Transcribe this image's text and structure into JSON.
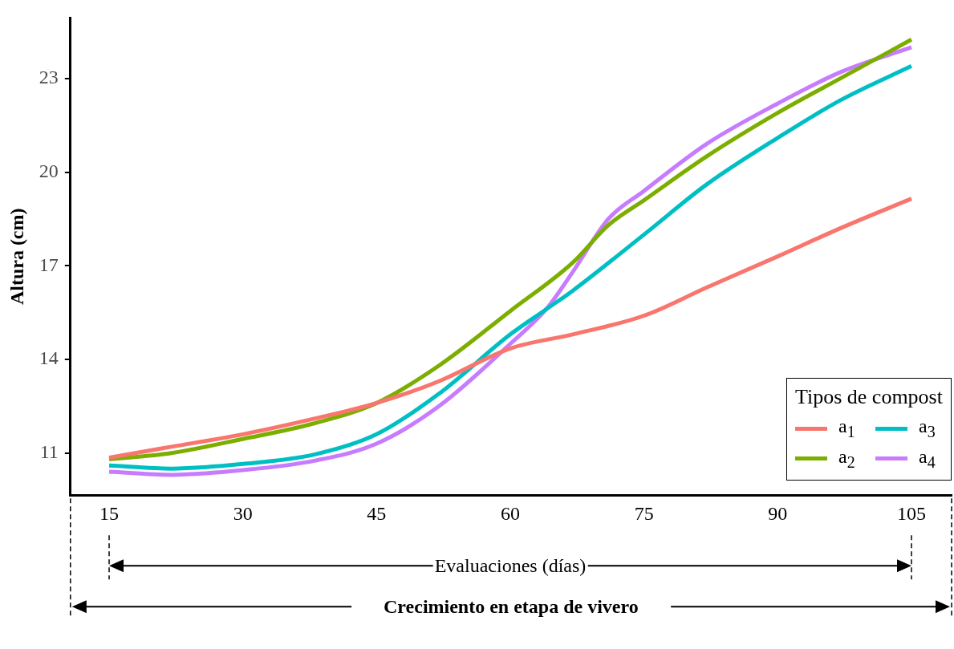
{
  "chart_data": {
    "type": "line",
    "xlabel": "Evaluaciones (días)",
    "ylabel": "Altura (cm)",
    "legend_title": "Tipos de compost",
    "legend": "bottom right",
    "marker": "none",
    "line_style": "solid",
    "annotations": [
      "Crecimiento en etapa de vivero"
    ],
    "xlim": [
      10.66,
      109.5
    ],
    "xticks": [
      15,
      30,
      45,
      60,
      75,
      90,
      105
    ],
    "ylim": [
      9.65,
      24.94
    ],
    "yticks": [
      11,
      14,
      17,
      20,
      23
    ],
    "series": [
      {
        "name": "a$_{1}$",
        "color": "#f8766d",
        "x": [
          15,
          22,
          30,
          38,
          45,
          52,
          60,
          67,
          75,
          82,
          90,
          97,
          105
        ],
        "values": [
          10.85,
          11.2,
          11.6,
          12.1,
          12.6,
          13.3,
          14.35,
          14.8,
          15.4,
          16.3,
          17.3,
          18.2,
          19.15
        ]
      },
      {
        "name": "a$_{2}$",
        "color": "#7cae00",
        "x": [
          15,
          22,
          30,
          38,
          45,
          52,
          60,
          67,
          71,
          75,
          82,
          90,
          97,
          105
        ],
        "values": [
          10.8,
          11.0,
          11.45,
          11.95,
          12.6,
          13.8,
          15.55,
          17.1,
          18.3,
          19.1,
          20.5,
          21.9,
          23.0,
          24.25
        ]
      },
      {
        "name": "a$_{3}$",
        "color": "#00bfc4",
        "x": [
          15,
          22,
          30,
          38,
          45,
          52,
          60,
          64,
          67,
          75,
          82,
          90,
          97,
          105
        ],
        "values": [
          10.6,
          10.5,
          10.65,
          10.95,
          11.6,
          12.9,
          14.8,
          15.6,
          16.2,
          18.0,
          19.6,
          21.1,
          22.3,
          23.4
        ]
      },
      {
        "name": "a$_{4}$",
        "color": "#c77cff",
        "x": [
          15,
          22,
          30,
          38,
          45,
          52,
          60,
          64,
          67,
          71,
          75,
          82,
          90,
          97,
          105
        ],
        "values": [
          10.4,
          10.3,
          10.45,
          10.75,
          11.3,
          12.5,
          14.5,
          15.6,
          16.8,
          18.5,
          19.4,
          20.9,
          22.2,
          23.2,
          24.0
        ]
      }
    ]
  }
}
